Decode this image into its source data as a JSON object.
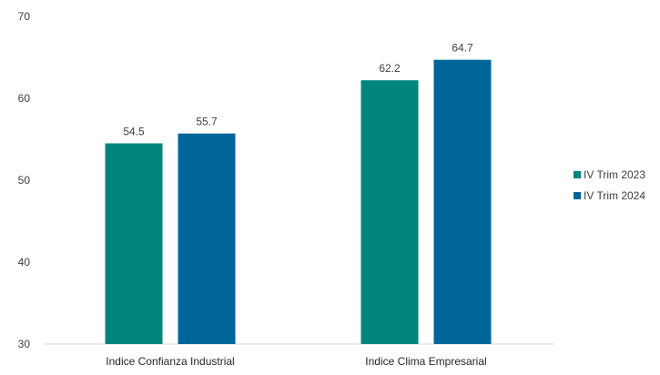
{
  "chart_data": {
    "type": "bar",
    "title": "",
    "xlabel": "",
    "ylabel": "",
    "categories": [
      "Indice Confianza Industrial",
      "Indice Clima Empresarial"
    ],
    "series": [
      {
        "name": "IV Trim 2023",
        "values": [
          54.5,
          62.2
        ],
        "labels": [
          "54.5",
          "62.2"
        ],
        "color": "#00857C"
      },
      {
        "name": "IV Trim 2024",
        "values": [
          55.7,
          64.7
        ],
        "labels": [
          "55.7",
          "64.7"
        ],
        "color": "#006699"
      }
    ],
    "ylim": [
      30,
      70
    ],
    "yticks": [
      30,
      40,
      50,
      60,
      70
    ],
    "yticklabels": [
      "30",
      "40",
      "50",
      "60",
      "70"
    ],
    "grid": false,
    "legend_position": "right"
  }
}
